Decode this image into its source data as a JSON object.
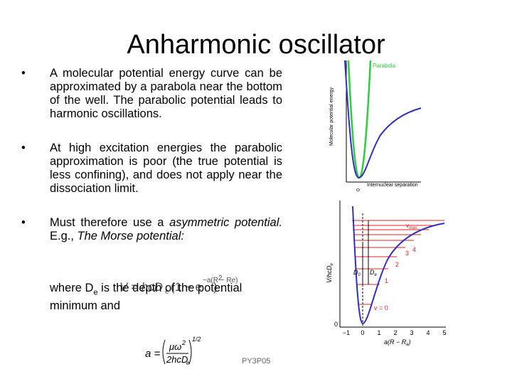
{
  "title": "Anharmonic oscillator",
  "bullets": [
    "A molecular potential energy curve can be approximated by a parabola near the bottom of the well. The parabolic potential leads to harmonic oscillations.",
    "At high excitation energies the parabolic approximation is poor (the true potential is less confining), and does not apply near the dissociation limit.",
    [
      "Must therefore use a ",
      "asymmetric potential.",
      " E.g., ",
      "The Morse potential:"
    ]
  ],
  "morse_formula": [
    "V = hcD",
    "e",
    "(1 − e",
    "−a(R − Re)",
    ")",
    "2"
  ],
  "where": [
    "where D",
    "e",
    " is the depth of the potential minimum and"
  ],
  "a_formula": {
    "lhs": "a =",
    "numerator": "μω",
    "num_power": "2",
    "denominator": "2hcD",
    "den_sub": "e",
    "power": "1/2"
  },
  "footer": "PY3P05",
  "figure1": {
    "legend": "Parabola",
    "y_label": "Molecular potential energy",
    "x_label": "Internuclear separation",
    "origin": "0"
  },
  "figure2": {
    "y_label": [
      "V/hcD",
      "e"
    ],
    "x_label": [
      "a(R − R",
      "e",
      ")"
    ],
    "xticks": [
      "−1",
      "0",
      "1",
      "2",
      "3",
      "4",
      "5"
    ],
    "y_origin": "0",
    "vmax": [
      "v",
      "max"
    ],
    "levels": [
      "4",
      "3",
      "2",
      "1"
    ],
    "v0": "v = 0",
    "d0": [
      "D",
      "0"
    ],
    "de": [
      "D",
      "e"
    ]
  }
}
